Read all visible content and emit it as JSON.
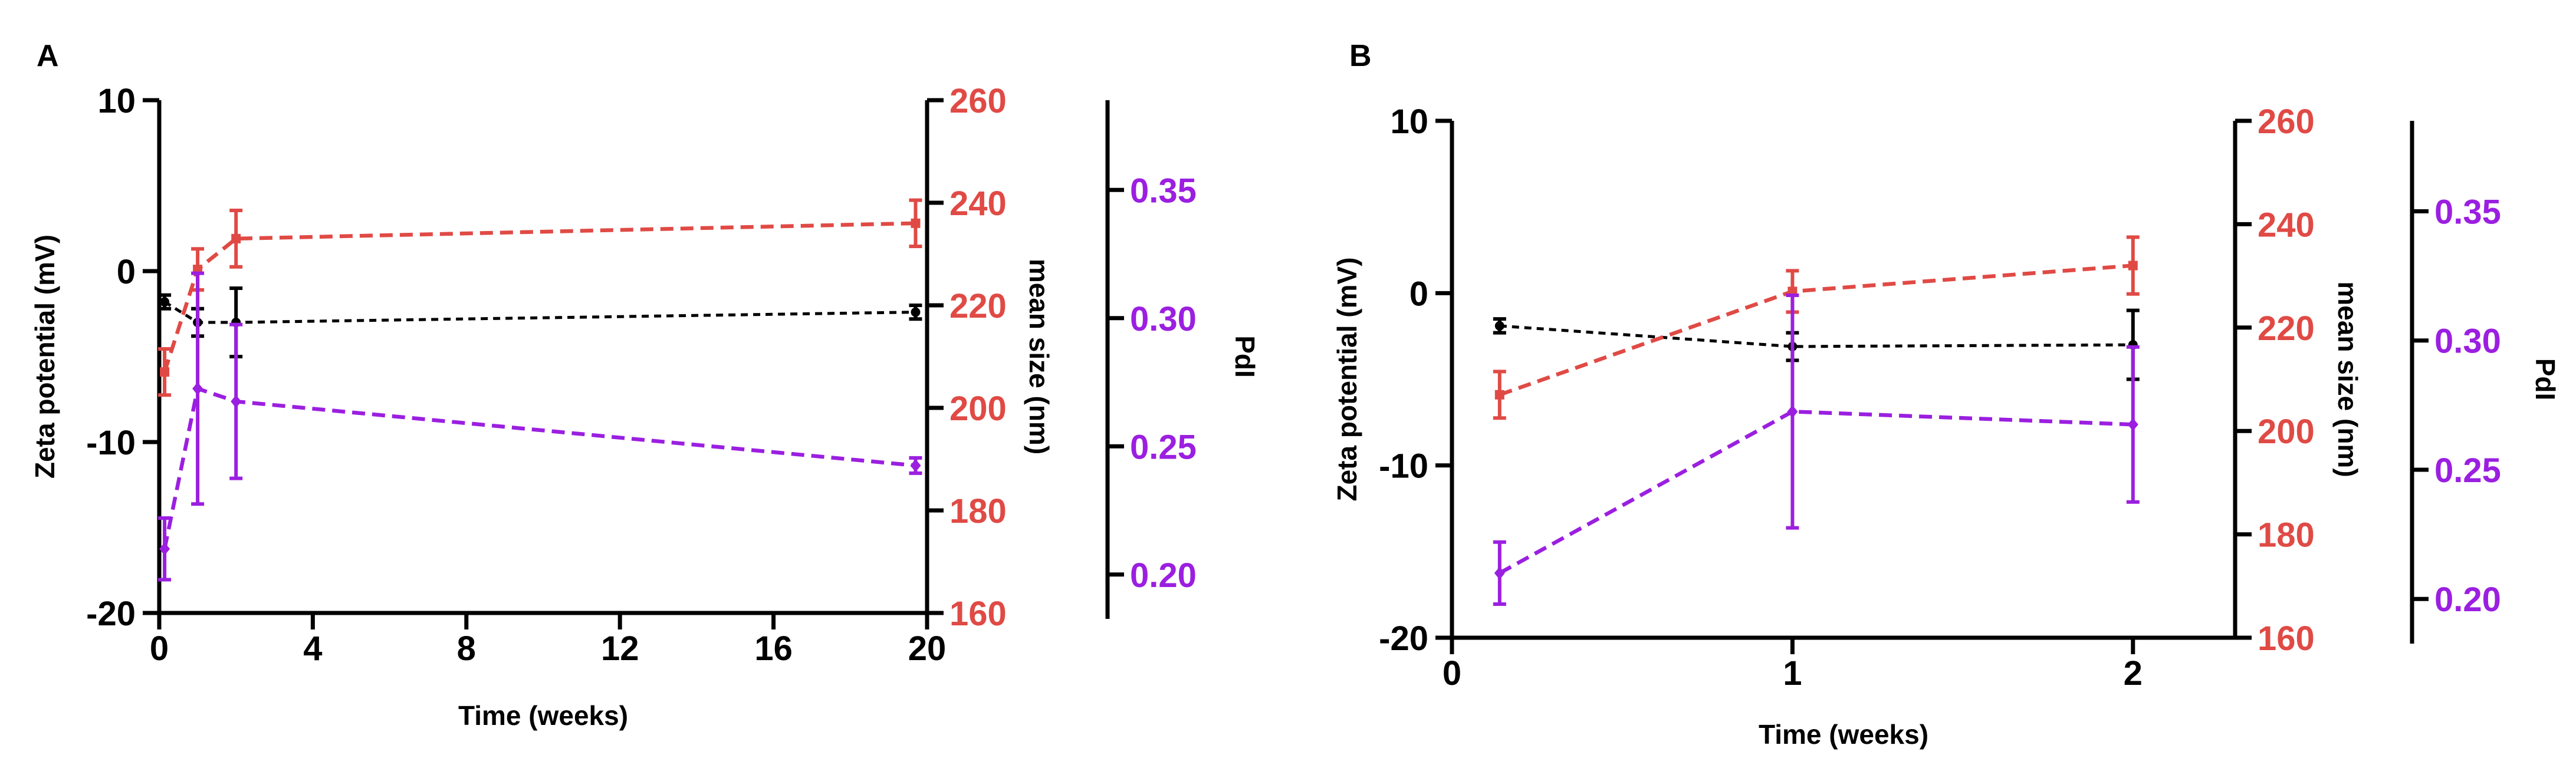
{
  "figure": {
    "colors": {
      "zeta": "#000000",
      "size": "#e04a45",
      "pdi": "#9b1fe0"
    }
  },
  "chart_data": [
    {
      "panel_label": "A",
      "type": "line",
      "xlabel": "Time (weeks)",
      "xlim": [
        0,
        20
      ],
      "xticks": [
        0,
        4,
        8,
        12,
        16,
        20
      ],
      "x": [
        0.14,
        1,
        2,
        19.7
      ],
      "axes": [
        {
          "key": "zeta",
          "label": "Zeta potential (mV)",
          "side": "left",
          "lim": [
            -20,
            10
          ],
          "ticks": [
            -20,
            -10,
            0,
            10
          ],
          "tick_labels": [
            "-20",
            "-10",
            "0",
            "10"
          ]
        },
        {
          "key": "size",
          "label": "mean size (nm)",
          "side": "right",
          "lim": [
            160,
            260
          ],
          "ticks": [
            160,
            180,
            200,
            220,
            240,
            260
          ],
          "tick_labels": [
            "160",
            "180",
            "200",
            "220",
            "240",
            "260"
          ]
        },
        {
          "key": "pdi",
          "label": "PdI",
          "side": "right-outer",
          "lim": [
            0.185,
            0.385
          ],
          "ticks": [
            0.2,
            0.25,
            0.3,
            0.35
          ],
          "tick_labels": [
            "0.20",
            "0.25",
            "0.30",
            "0.35"
          ]
        }
      ],
      "series": [
        {
          "name": "Zeta potential",
          "axis": "zeta",
          "color": "#000000",
          "values": [
            -1.8,
            -3.0,
            -3.0,
            -2.4
          ],
          "errors": [
            0.4,
            0.8,
            2.0,
            0.4
          ]
        },
        {
          "name": "Mean size",
          "axis": "size",
          "color": "#e04a45",
          "values": [
            207,
            227,
            233,
            236
          ],
          "errors": [
            4.5,
            4.0,
            5.5,
            4.5
          ]
        },
        {
          "name": "PdI",
          "axis": "pdi",
          "color": "#9b1fe0",
          "values": [
            0.21,
            0.2725,
            0.2675,
            0.2425
          ],
          "errors": [
            0.012,
            0.045,
            0.03,
            0.003
          ]
        }
      ]
    },
    {
      "panel_label": "B",
      "type": "line",
      "xlabel": "Time (weeks)",
      "xlim": [
        0,
        2.3
      ],
      "xticks": [
        0,
        1,
        2
      ],
      "x": [
        0.14,
        1,
        2
      ],
      "axes": [
        {
          "key": "zeta",
          "label": "Zeta potential (mV)",
          "side": "left",
          "lim": [
            -20,
            10
          ],
          "ticks": [
            -20,
            -10,
            0,
            10
          ],
          "tick_labels": [
            "-20",
            "-10",
            "0",
            "10"
          ]
        },
        {
          "key": "size",
          "label": "mean size (nm)",
          "side": "right",
          "lim": [
            160,
            260
          ],
          "ticks": [
            160,
            180,
            200,
            220,
            240,
            260
          ],
          "tick_labels": [
            "160",
            "180",
            "200",
            "220",
            "240",
            "260"
          ]
        },
        {
          "key": "pdi",
          "label": "PdI",
          "side": "right-outer",
          "lim": [
            0.185,
            0.385
          ],
          "ticks": [
            0.2,
            0.25,
            0.3,
            0.35
          ],
          "tick_labels": [
            "0.20",
            "0.25",
            "0.30",
            "0.35"
          ]
        }
      ],
      "series": [
        {
          "name": "Zeta potential",
          "axis": "zeta",
          "color": "#000000",
          "values": [
            -1.9,
            -3.1,
            -3.0
          ],
          "errors": [
            0.4,
            0.8,
            2.0
          ]
        },
        {
          "name": "Mean size",
          "axis": "size",
          "color": "#e04a45",
          "values": [
            207,
            227,
            232
          ],
          "errors": [
            4.5,
            4.0,
            5.5
          ]
        },
        {
          "name": "PdI",
          "axis": "pdi",
          "color": "#9b1fe0",
          "values": [
            0.21,
            0.2725,
            0.2675
          ],
          "errors": [
            0.012,
            0.045,
            0.03
          ]
        }
      ]
    }
  ]
}
